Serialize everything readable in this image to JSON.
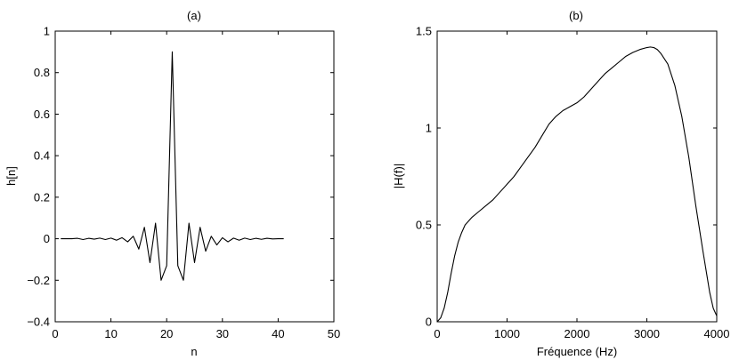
{
  "chart_data": [
    {
      "type": "line",
      "title": "(a)",
      "xlabel": "n",
      "ylabel": "h[n]",
      "xlim": [
        0,
        50
      ],
      "ylim": [
        -0.4,
        1
      ],
      "xticks": [
        0,
        10,
        20,
        30,
        40,
        50
      ],
      "yticks": [
        -0.4,
        -0.2,
        0,
        0.2,
        0.4,
        0.6,
        0.8,
        1
      ],
      "xtick_labels": [
        "0",
        "10",
        "20",
        "30",
        "40",
        "50"
      ],
      "ytick_labels": [
        "−0.4",
        "−0.2",
        "0",
        "0.2",
        "0.4",
        "0.6",
        "0.8",
        "1"
      ],
      "grid": false,
      "series": [
        {
          "x": [
            1,
            2,
            3,
            4,
            5,
            6,
            7,
            8,
            9,
            10,
            11,
            12,
            13,
            14,
            15,
            16,
            17,
            18,
            19,
            20,
            21,
            22,
            23,
            24,
            25,
            26,
            27,
            28,
            29,
            30,
            31,
            32,
            33,
            34,
            35,
            36,
            37,
            38,
            39,
            40,
            41
          ],
          "y": [
            0,
            0,
            0,
            0.002,
            -0.004,
            0.002,
            -0.002,
            0.003,
            -0.004,
            0.003,
            -0.007,
            0.005,
            -0.015,
            0.012,
            -0.05,
            0.055,
            -0.115,
            0.075,
            -0.2,
            -0.13,
            0.9,
            -0.13,
            -0.2,
            0.075,
            -0.115,
            0.055,
            -0.06,
            0.012,
            -0.03,
            0.005,
            -0.015,
            0.003,
            -0.007,
            0.003,
            -0.004,
            0.002,
            -0.003,
            0.002,
            -0.001,
            0,
            0
          ]
        }
      ]
    },
    {
      "type": "line",
      "title": "(b)",
      "xlabel": "Fréquence (Hz)",
      "ylabel": "|H(f)|",
      "xlim": [
        0,
        4000
      ],
      "ylim": [
        0,
        1.5
      ],
      "xticks": [
        0,
        1000,
        2000,
        3000,
        4000
      ],
      "yticks": [
        0,
        0.5,
        1,
        1.5
      ],
      "xtick_labels": [
        "0",
        "1000",
        "2000",
        "3000",
        "4000"
      ],
      "ytick_labels": [
        "0",
        "0.5",
        "1",
        "1.5"
      ],
      "grid": false,
      "series": [
        {
          "x": [
            0,
            50,
            100,
            150,
            200,
            250,
            300,
            350,
            400,
            450,
            500,
            600,
            700,
            800,
            900,
            1000,
            1100,
            1200,
            1300,
            1400,
            1500,
            1600,
            1700,
            1800,
            1900,
            2000,
            2100,
            2200,
            2300,
            2400,
            2500,
            2600,
            2700,
            2800,
            2900,
            3000,
            3050,
            3100,
            3150,
            3200,
            3300,
            3400,
            3500,
            3600,
            3700,
            3800,
            3900,
            3950,
            4000
          ],
          "y": [
            0,
            0.02,
            0.07,
            0.15,
            0.25,
            0.34,
            0.41,
            0.46,
            0.5,
            0.52,
            0.54,
            0.57,
            0.6,
            0.63,
            0.67,
            0.71,
            0.75,
            0.8,
            0.85,
            0.9,
            0.96,
            1.02,
            1.06,
            1.09,
            1.11,
            1.13,
            1.16,
            1.2,
            1.24,
            1.28,
            1.31,
            1.34,
            1.37,
            1.39,
            1.405,
            1.415,
            1.418,
            1.415,
            1.405,
            1.385,
            1.33,
            1.22,
            1.06,
            0.85,
            0.6,
            0.37,
            0.15,
            0.07,
            0.03
          ]
        }
      ]
    }
  ]
}
